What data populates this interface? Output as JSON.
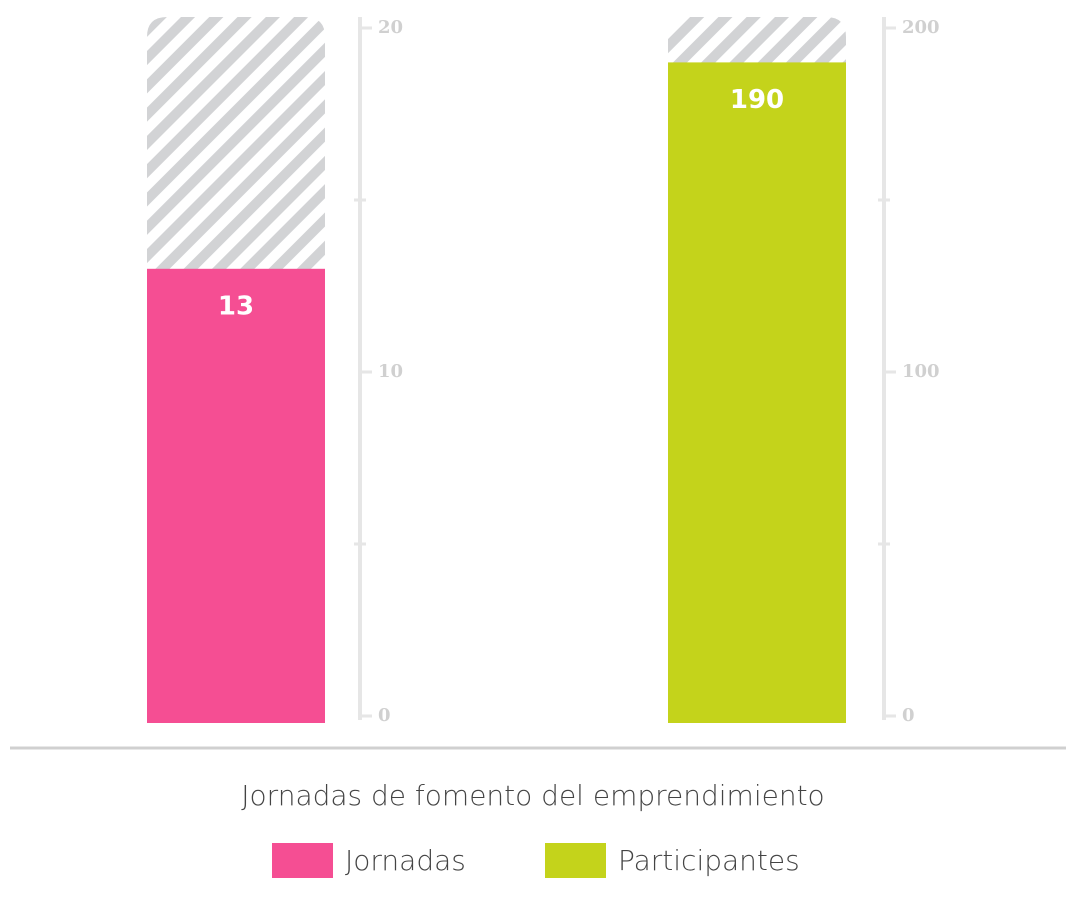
{
  "chart_data": {
    "type": "bar",
    "categories": [
      "Jornadas de fomento del emprendimiento"
    ],
    "series": [
      {
        "name": "Jornadas",
        "color": "#f54e93",
        "values": [
          13
        ]
      },
      {
        "name": "Participantes",
        "color": "#c4d31b",
        "values": [
          190
        ],
        "axis": "y2"
      }
    ],
    "ylim": [
      0,
      20
    ],
    "yticks": [
      0,
      10,
      20
    ],
    "yminor_ticks": [
      5,
      15
    ],
    "y2lim": [
      0,
      200
    ],
    "y2ticks": [
      0,
      100,
      200
    ],
    "y2minor_ticks": [
      50,
      150
    ],
    "legend": "bottom"
  }
}
